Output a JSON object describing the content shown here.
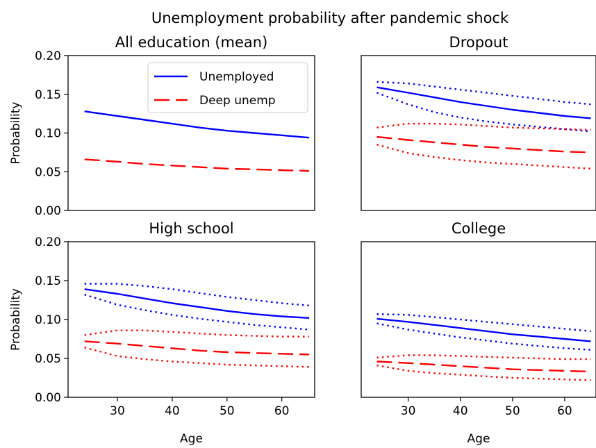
{
  "title": "Unemployment probability after pandemic shock",
  "colors": {
    "unemployed": "#0000ff",
    "deep": "#ff0000"
  },
  "legend": {
    "placement": "upper-right of first panel",
    "entries": [
      "Unemployed",
      "Deep unemp"
    ]
  },
  "chart_data": [
    {
      "type": "line",
      "title": "All education (mean)",
      "xlabel": "",
      "ylabel": "Probability",
      "xlim": [
        21,
        66
      ],
      "ylim": [
        0,
        0.2
      ],
      "yticks": [
        "0.00",
        "0.05",
        "0.10",
        "0.15",
        "0.20"
      ],
      "xticks": [],
      "x": [
        24,
        30,
        35,
        40,
        45,
        50,
        55,
        60,
        65
      ],
      "series": [
        {
          "name": "Unemployed",
          "style": "solid",
          "color": "#0000ff",
          "values": [
            0.128,
            0.122,
            0.117,
            0.112,
            0.107,
            0.103,
            0.1,
            0.097,
            0.094
          ]
        },
        {
          "name": "Deep unemp",
          "style": "dashed",
          "color": "#ff0000",
          "values": [
            0.066,
            0.063,
            0.06,
            0.058,
            0.056,
            0.054,
            0.053,
            0.052,
            0.051
          ]
        }
      ]
    },
    {
      "type": "line",
      "title": "Dropout",
      "xlabel": "",
      "ylabel": "",
      "xlim": [
        21,
        66
      ],
      "ylim": [
        0,
        0.2
      ],
      "yticks": [],
      "xticks": [],
      "x": [
        24,
        30,
        35,
        40,
        45,
        50,
        55,
        60,
        65
      ],
      "series": [
        {
          "style": "solid",
          "color": "#0000ff",
          "values": [
            0.159,
            0.152,
            0.146,
            0.14,
            0.135,
            0.13,
            0.126,
            0.122,
            0.119
          ]
        },
        {
          "style": "dotted",
          "color": "#0000ff",
          "values": [
            0.166,
            0.164,
            0.16,
            0.156,
            0.152,
            0.148,
            0.144,
            0.14,
            0.137
          ]
        },
        {
          "style": "dotted",
          "color": "#0000ff",
          "values": [
            0.152,
            0.137,
            0.127,
            0.12,
            0.115,
            0.111,
            0.108,
            0.105,
            0.102
          ]
        },
        {
          "style": "dashed",
          "color": "#ff0000",
          "values": [
            0.095,
            0.091,
            0.088,
            0.085,
            0.082,
            0.08,
            0.078,
            0.076,
            0.075
          ]
        },
        {
          "style": "dotted",
          "color": "#ff0000",
          "values": [
            0.107,
            0.112,
            0.112,
            0.111,
            0.109,
            0.107,
            0.106,
            0.105,
            0.104
          ]
        },
        {
          "style": "dotted",
          "color": "#ff0000",
          "values": [
            0.085,
            0.074,
            0.069,
            0.065,
            0.062,
            0.06,
            0.058,
            0.056,
            0.054
          ]
        }
      ]
    },
    {
      "type": "line",
      "title": "High school",
      "xlabel": "Age",
      "ylabel": "Probability",
      "xlim": [
        21,
        66
      ],
      "ylim": [
        0,
        0.2
      ],
      "yticks": [
        "0.00",
        "0.05",
        "0.10",
        "0.15",
        "0.20"
      ],
      "xticks": [
        "30",
        "40",
        "50",
        "60"
      ],
      "x": [
        24,
        30,
        35,
        40,
        45,
        50,
        55,
        60,
        65
      ],
      "series": [
        {
          "style": "solid",
          "color": "#0000ff",
          "values": [
            0.139,
            0.133,
            0.127,
            0.121,
            0.116,
            0.111,
            0.107,
            0.104,
            0.102
          ]
        },
        {
          "style": "dotted",
          "color": "#0000ff",
          "values": [
            0.146,
            0.146,
            0.143,
            0.139,
            0.134,
            0.129,
            0.125,
            0.121,
            0.118
          ]
        },
        {
          "style": "dotted",
          "color": "#0000ff",
          "values": [
            0.132,
            0.119,
            0.112,
            0.106,
            0.101,
            0.097,
            0.093,
            0.09,
            0.087
          ]
        },
        {
          "style": "dashed",
          "color": "#ff0000",
          "values": [
            0.072,
            0.069,
            0.066,
            0.063,
            0.06,
            0.058,
            0.057,
            0.056,
            0.055
          ]
        },
        {
          "style": "dotted",
          "color": "#ff0000",
          "values": [
            0.08,
            0.086,
            0.086,
            0.084,
            0.082,
            0.08,
            0.079,
            0.078,
            0.078
          ]
        },
        {
          "style": "dotted",
          "color": "#ff0000",
          "values": [
            0.064,
            0.053,
            0.049,
            0.046,
            0.044,
            0.042,
            0.041,
            0.04,
            0.039
          ]
        }
      ]
    },
    {
      "type": "line",
      "title": "College",
      "xlabel": "Age",
      "ylabel": "",
      "xlim": [
        21,
        66
      ],
      "ylim": [
        0,
        0.2
      ],
      "yticks": [],
      "xticks": [
        "30",
        "40",
        "50",
        "60"
      ],
      "x": [
        24,
        30,
        35,
        40,
        45,
        50,
        55,
        60,
        65
      ],
      "series": [
        {
          "style": "solid",
          "color": "#0000ff",
          "values": [
            0.101,
            0.097,
            0.093,
            0.089,
            0.085,
            0.081,
            0.078,
            0.075,
            0.072
          ]
        },
        {
          "style": "dotted",
          "color": "#0000ff",
          "values": [
            0.107,
            0.106,
            0.103,
            0.1,
            0.097,
            0.094,
            0.091,
            0.088,
            0.085
          ]
        },
        {
          "style": "dotted",
          "color": "#0000ff",
          "values": [
            0.095,
            0.087,
            0.082,
            0.077,
            0.073,
            0.069,
            0.066,
            0.063,
            0.061
          ]
        },
        {
          "style": "dashed",
          "color": "#ff0000",
          "values": [
            0.046,
            0.044,
            0.042,
            0.04,
            0.038,
            0.036,
            0.035,
            0.034,
            0.033
          ]
        },
        {
          "style": "dotted",
          "color": "#ff0000",
          "values": [
            0.051,
            0.054,
            0.054,
            0.053,
            0.052,
            0.051,
            0.05,
            0.049,
            0.049
          ]
        },
        {
          "style": "dotted",
          "color": "#ff0000",
          "values": [
            0.041,
            0.034,
            0.031,
            0.029,
            0.027,
            0.025,
            0.024,
            0.023,
            0.022
          ]
        }
      ]
    }
  ]
}
